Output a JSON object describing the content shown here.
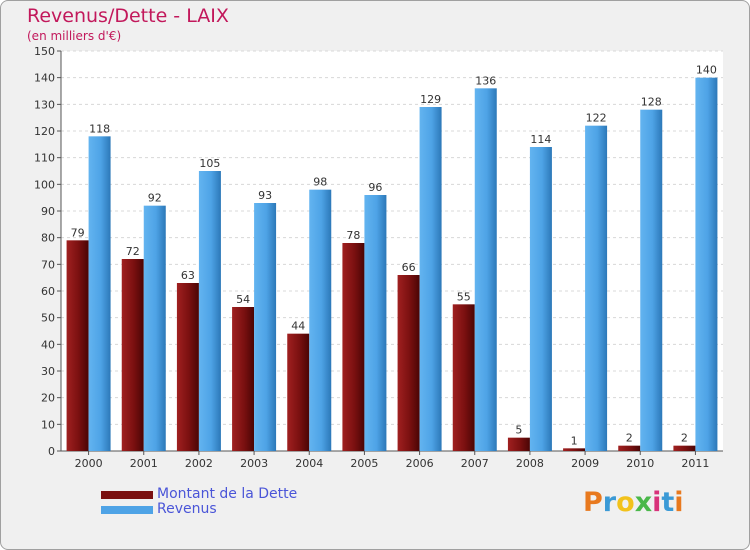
{
  "chart_data": {
    "type": "bar",
    "title": "Revenus/Dette - LAIX",
    "subtitle": "(en milliers d'€)",
    "categories": [
      "2000",
      "2001",
      "2002",
      "2003",
      "2004",
      "2005",
      "2006",
      "2007",
      "2008",
      "2009",
      "2010",
      "2011"
    ],
    "series": [
      {
        "name": "Montant de la Dette",
        "values": [
          79,
          72,
          63,
          54,
          44,
          78,
          66,
          55,
          5,
          1,
          2,
          2
        ],
        "labels": [
          "79",
          "72",
          "63",
          "54",
          "44",
          "78",
          "66",
          "55",
          "5",
          "1",
          "2",
          "2"
        ],
        "color": "#7a1010"
      },
      {
        "name": "Revenus",
        "values": [
          118,
          92,
          105,
          93,
          98,
          96,
          129,
          136,
          114,
          122,
          128,
          140
        ],
        "labels": [
          "118",
          "92",
          "105",
          "93",
          "98",
          "96",
          "129",
          "136",
          "114",
          "122",
          "128",
          "140"
        ],
        "color": "#4ea3e6"
      }
    ],
    "ylim": [
      0,
      150
    ],
    "yticks": [
      0,
      10,
      20,
      30,
      40,
      50,
      60,
      70,
      80,
      90,
      100,
      110,
      120,
      130,
      140,
      150
    ],
    "grid": true,
    "legend_position": "bottom-left"
  },
  "logo": {
    "text": "Proxiti",
    "colors": [
      "#e8791e",
      "#3b9ad6",
      "#f2c21b",
      "#4ab84a",
      "#d8327a",
      "#3b9ad6",
      "#e8791e"
    ]
  }
}
